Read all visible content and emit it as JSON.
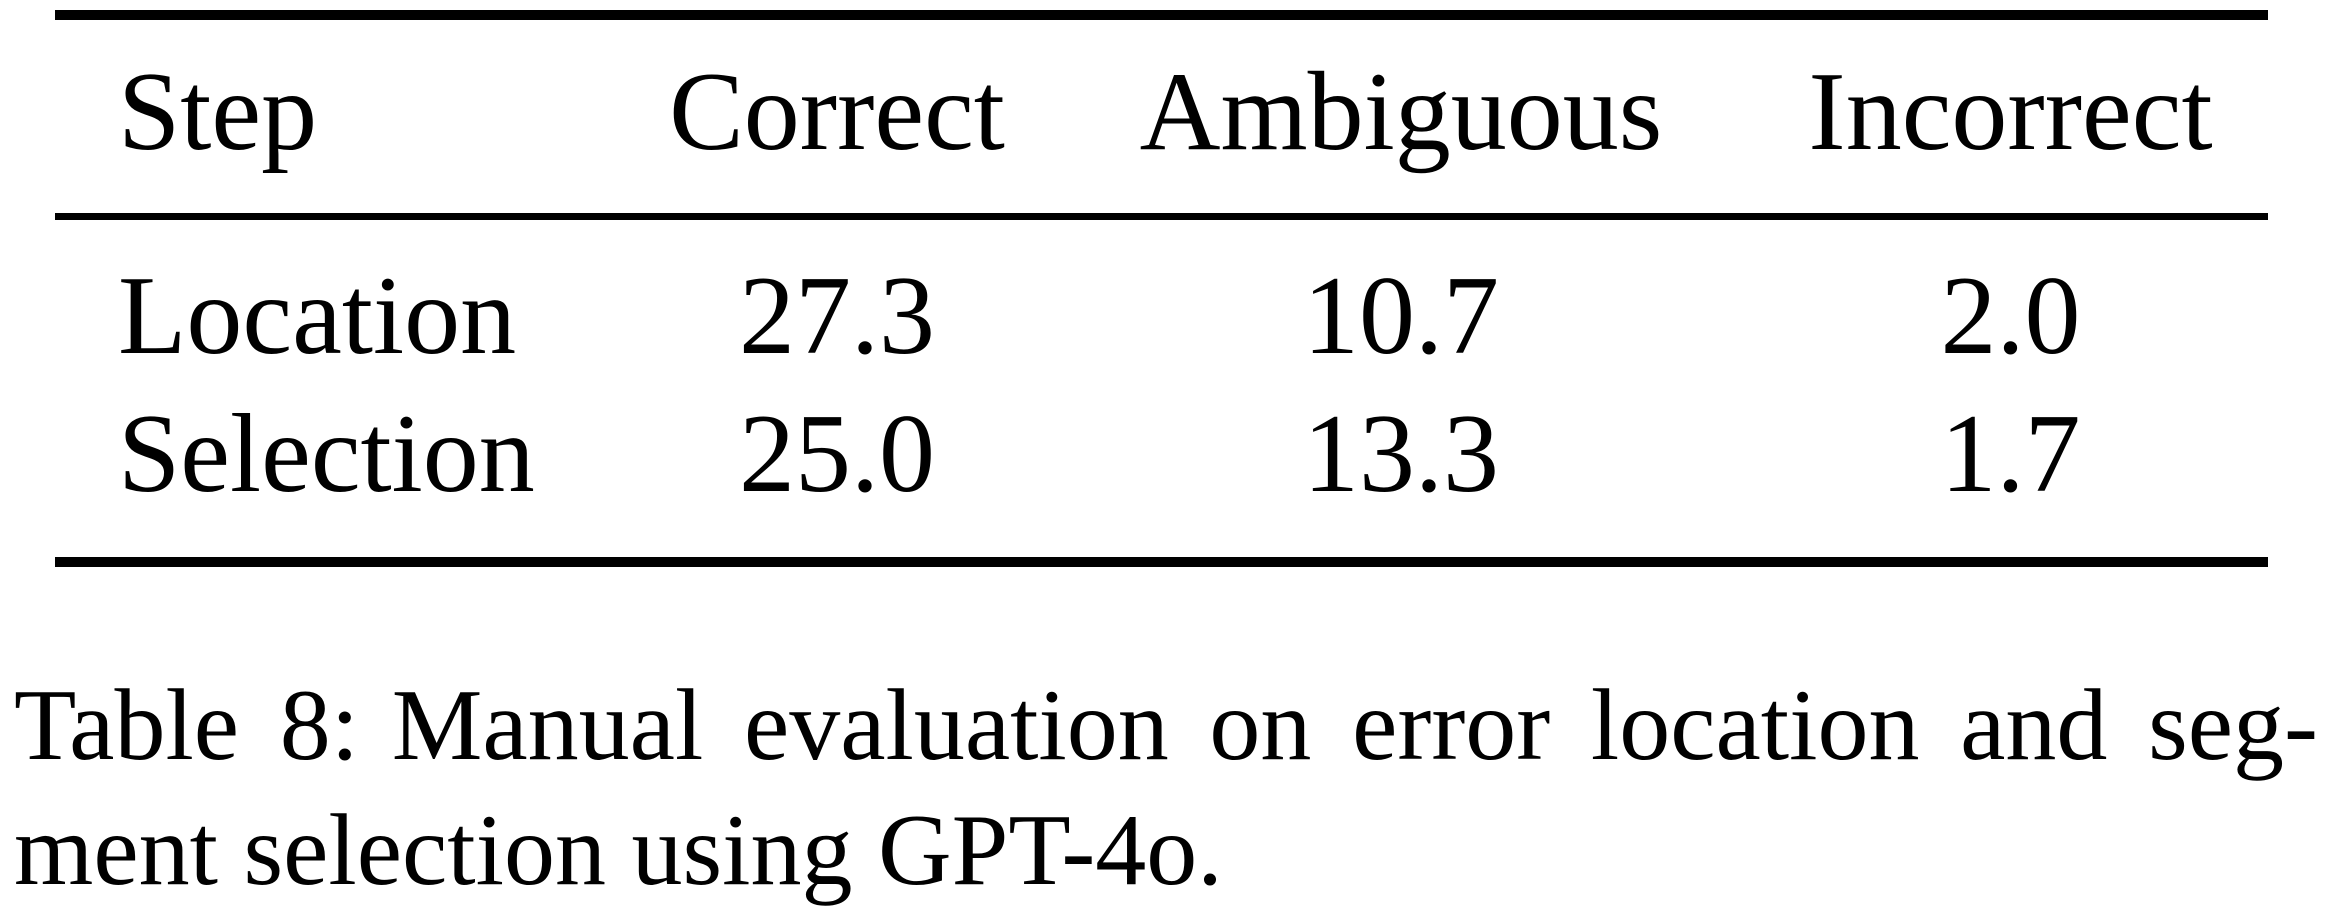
{
  "table": {
    "columns": {
      "step": "Step",
      "correct": "Correct",
      "ambiguous": "Ambiguous",
      "incorrect": "Incorrect"
    },
    "rows": [
      {
        "step": "Location",
        "correct": "27.3",
        "ambiguous": "10.7",
        "incorrect": "2.0"
      },
      {
        "step": "Selection",
        "correct": "25.0",
        "ambiguous": "13.3",
        "incorrect": "1.7"
      }
    ]
  },
  "caption": {
    "label": "Table 8:",
    "line1_rest": "Manual evaluation on error location and seg-",
    "line2": "ment selection using GPT-4o.",
    "full_text": "Table 8: Manual evaluation on error location and segment selection using GPT-4o."
  },
  "colors": {
    "text": "#000000",
    "rule": "#000000",
    "background": "#ffffff"
  }
}
